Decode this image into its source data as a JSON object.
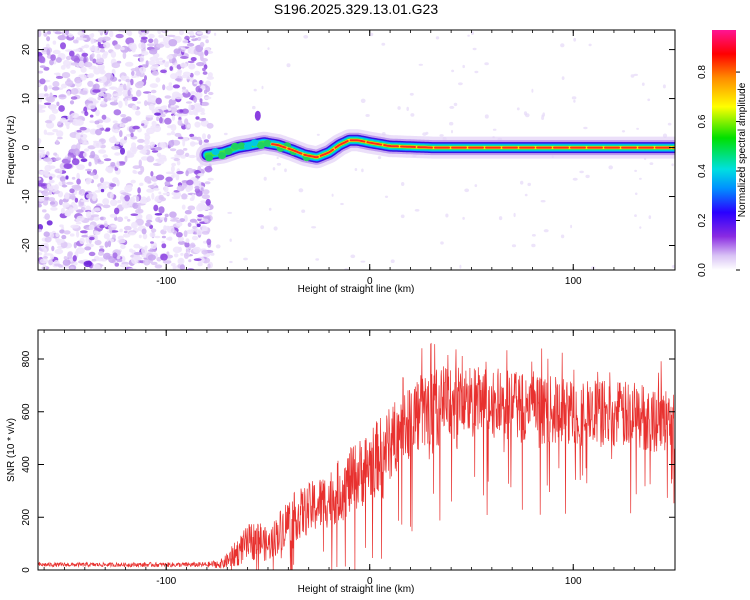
{
  "page": {
    "title": "S196.2025.329.13.01.G23"
  },
  "chart_data": [
    {
      "id": "spectrogram",
      "type": "heatmap",
      "title": "S196.2025.329.13.01.G23",
      "xlabel": "Height of straight line (km)",
      "ylabel": "Frequency (Hz)",
      "xlim": [
        -163,
        150
      ],
      "ylim": [
        -25,
        24
      ],
      "x_ticks": [
        {
          "v": -100,
          "label": "-100"
        },
        {
          "v": 0,
          "label": "0"
        },
        {
          "v": 100,
          "label": "100"
        }
      ],
      "y_ticks": [
        {
          "v": 20,
          "label": "20"
        },
        {
          "v": 10,
          "label": "10"
        },
        {
          "v": 0,
          "label": "0"
        },
        {
          "v": -10,
          "label": "-10"
        },
        {
          "v": -20,
          "label": "-20"
        }
      ],
      "noise_region_x": [
        -163,
        -80
      ],
      "signal_ridge": {
        "x": [
          -80,
          -72,
          -65,
          -58,
          -52,
          -45,
          -38,
          -32,
          -26,
          -20,
          -15,
          -10,
          -6,
          0,
          10,
          30,
          60,
          90,
          120,
          150
        ],
        "freq": [
          -1.5,
          -1.0,
          0.0,
          0.5,
          1.0,
          0.5,
          -0.5,
          -1.5,
          -2.0,
          -1.0,
          0.5,
          1.5,
          1.5,
          1.0,
          0.3,
          0.0,
          0.0,
          0.0,
          0.0,
          0.0
        ]
      },
      "colorbar": {
        "label": "Normalized spectral amplitude",
        "range": [
          0.0,
          0.97
        ],
        "ticks": [
          {
            "v": 0.0,
            "label": "0.0"
          },
          {
            "v": 0.2,
            "label": "0.2"
          },
          {
            "v": 0.4,
            "label": "0.4"
          },
          {
            "v": 0.6,
            "label": "0.6"
          },
          {
            "v": 0.8,
            "label": "0.8"
          }
        ]
      }
    },
    {
      "id": "snr",
      "type": "line",
      "xlabel": "Height of straight line (km)",
      "ylabel": "SNR (10 * v/v)",
      "xlim": [
        -163,
        150
      ],
      "ylim": [
        0,
        910
      ],
      "x_ticks": [
        {
          "v": -100,
          "label": "-100"
        },
        {
          "v": 0,
          "label": "0"
        },
        {
          "v": 100,
          "label": "100"
        }
      ],
      "y_ticks": [
        {
          "v": 800,
          "label": "800"
        },
        {
          "v": 600,
          "label": "600"
        },
        {
          "v": 400,
          "label": "400"
        },
        {
          "v": 200,
          "label": "200"
        },
        {
          "v": 0,
          "label": "0"
        }
      ],
      "series": [
        {
          "name": "SNR",
          "color": "#e8312f",
          "x": [
            -163,
            -120,
            -80,
            -72,
            -66,
            -60,
            -55,
            -50,
            -45,
            -40,
            -30,
            -20,
            -10,
            0,
            10,
            20,
            30,
            40,
            60,
            80,
            100,
            120,
            150
          ],
          "y": [
            20,
            20,
            20,
            25,
            60,
            100,
            120,
            90,
            140,
            190,
            230,
            270,
            330,
            400,
            480,
            580,
            610,
            640,
            630,
            610,
            600,
            590,
            570
          ],
          "noise_amplitude": [
            8,
            8,
            10,
            20,
            50,
            70,
            80,
            60,
            80,
            90,
            100,
            110,
            130,
            140,
            140,
            150,
            150,
            150,
            140,
            130,
            130,
            130,
            130
          ]
        }
      ]
    }
  ]
}
